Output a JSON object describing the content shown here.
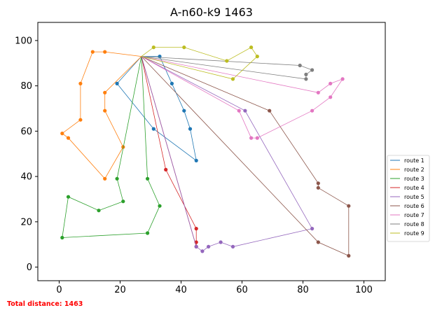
{
  "footer": {
    "total_distance": "Total distance: 1463"
  },
  "chart_data": {
    "type": "line",
    "title": "A-n60-k9 1463",
    "xlabel": "",
    "ylabel": "",
    "xlim": [
      -7,
      107
    ],
    "ylim": [
      -6,
      108
    ],
    "xticks": [
      0,
      20,
      40,
      60,
      80,
      100
    ],
    "yticks": [
      0,
      20,
      40,
      60,
      80,
      100
    ],
    "grid": false,
    "legend_position": "right",
    "depot": [
      27,
      93
    ],
    "series": [
      {
        "name": "route 1",
        "color": "#1f77b4",
        "points": [
          [
            27,
            93
          ],
          [
            33,
            93
          ],
          [
            37,
            81
          ],
          [
            41,
            69
          ],
          [
            43,
            61
          ],
          [
            45,
            47
          ],
          [
            31,
            61
          ],
          [
            19,
            81
          ],
          [
            27,
            93
          ]
        ]
      },
      {
        "name": "route 2",
        "color": "#ff7f0e",
        "points": [
          [
            27,
            93
          ],
          [
            15,
            95
          ],
          [
            11,
            95
          ],
          [
            7,
            81
          ],
          [
            7,
            65
          ],
          [
            1,
            59
          ],
          [
            3,
            57
          ],
          [
            15,
            39
          ],
          [
            21,
            53
          ],
          [
            15,
            69
          ],
          [
            15,
            77
          ],
          [
            27,
            93
          ]
        ]
      },
      {
        "name": "route 3",
        "color": "#2ca02c",
        "points": [
          [
            27,
            93
          ],
          [
            19,
            39
          ],
          [
            21,
            29
          ],
          [
            13,
            25
          ],
          [
            3,
            31
          ],
          [
            1,
            13
          ],
          [
            29,
            15
          ],
          [
            33,
            27
          ],
          [
            29,
            39
          ],
          [
            27,
            93
          ]
        ]
      },
      {
        "name": "route 4",
        "color": "#d62728",
        "points": [
          [
            27,
            93
          ],
          [
            35,
            43
          ],
          [
            45,
            17
          ],
          [
            45,
            11
          ],
          [
            45,
            9
          ],
          [
            27,
            93
          ]
        ]
      },
      {
        "name": "route 5",
        "color": "#9467bd",
        "points": [
          [
            27,
            93
          ],
          [
            61,
            69
          ],
          [
            83,
            17
          ],
          [
            57,
            9
          ],
          [
            53,
            11
          ],
          [
            49,
            9
          ],
          [
            47,
            7
          ],
          [
            45,
            9
          ],
          [
            27,
            93
          ]
        ]
      },
      {
        "name": "route 6",
        "color": "#8c564b",
        "points": [
          [
            27,
            93
          ],
          [
            69,
            69
          ],
          [
            85,
            37
          ],
          [
            85,
            35
          ],
          [
            95,
            27
          ],
          [
            95,
            5
          ],
          [
            85,
            11
          ],
          [
            27,
            93
          ]
        ]
      },
      {
        "name": "route 7",
        "color": "#e377c2",
        "points": [
          [
            27,
            93
          ],
          [
            59,
            69
          ],
          [
            63,
            57
          ],
          [
            65,
            57
          ],
          [
            83,
            69
          ],
          [
            89,
            75
          ],
          [
            93,
            83
          ],
          [
            89,
            81
          ],
          [
            85,
            77
          ],
          [
            27,
            93
          ]
        ]
      },
      {
        "name": "route 8",
        "color": "#7f7f7f",
        "points": [
          [
            27,
            93
          ],
          [
            79,
            89
          ],
          [
            83,
            87
          ],
          [
            81,
            85
          ],
          [
            81,
            83
          ],
          [
            27,
            93
          ]
        ]
      },
      {
        "name": "route 9",
        "color": "#bcbd22",
        "points": [
          [
            27,
            93
          ],
          [
            31,
            97
          ],
          [
            41,
            97
          ],
          [
            55,
            91
          ],
          [
            63,
            97
          ],
          [
            65,
            93
          ],
          [
            57,
            83
          ],
          [
            27,
            93
          ]
        ]
      }
    ]
  }
}
